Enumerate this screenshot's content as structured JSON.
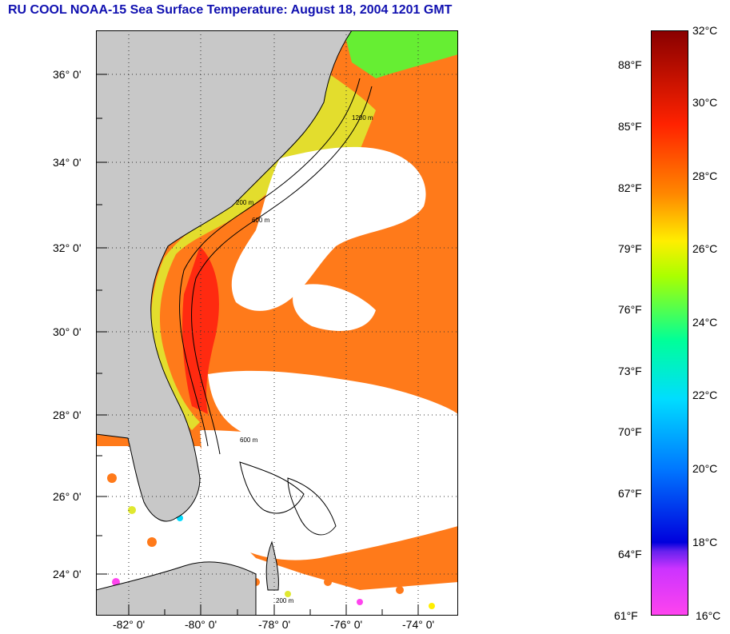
{
  "title": "RU COOL  NOAA-15  Sea Surface Temperature:  August 18, 2004 1201 GMT",
  "map": {
    "latitude_labels": [
      "36° 0'",
      "34° 0'",
      "32° 0'",
      "30° 0'",
      "28° 0'",
      "26° 0'",
      "24° 0'"
    ],
    "longitude_labels": [
      "-82° 0'",
      "-80° 0'",
      "-78° 0'",
      "-76° 0'",
      "-74° 0'"
    ],
    "isobath_labels": [
      "1200 m",
      "600 m",
      "200 m",
      "600 m",
      "200 m"
    ]
  },
  "colorbar": {
    "fahrenheit_labels": [
      "88°F",
      "85°F",
      "82°F",
      "79°F",
      "76°F",
      "73°F",
      "70°F",
      "67°F",
      "64°F",
      "61°F"
    ],
    "celsius_labels": [
      "32°C",
      "30°C",
      "28°C",
      "26°C",
      "24°C",
      "22°C",
      "20°C",
      "18°C",
      "16°C"
    ],
    "range_c": [
      16,
      32
    ],
    "colors": [
      "#ff44ee",
      "#9933ff",
      "#0000dd",
      "#0077ff",
      "#00ddff",
      "#00ff99",
      "#aaff00",
      "#ffee00",
      "#ff8800",
      "#ff2200",
      "#880000"
    ]
  },
  "colors": {
    "land": "#c8c8c8",
    "cloud": "#ffffff",
    "title": "#1010b0"
  }
}
